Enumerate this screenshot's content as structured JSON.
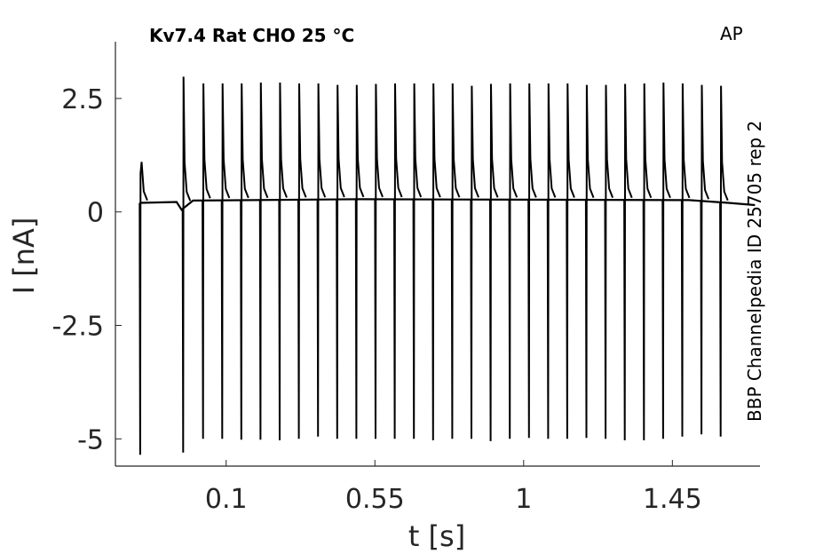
{
  "chart_data": {
    "type": "line",
    "title": "Kv7.4  Rat  CHO  25 °C",
    "protocol": "AP",
    "side_label": "BBP Channelpedia ID 25705 rep 2",
    "xlabel": "t [s]",
    "ylabel": "I [nA]",
    "xlim": [
      -0.235,
      1.715
    ],
    "ylim": [
      -5.6,
      3.75
    ],
    "x_ticks": [
      0.1,
      0.55,
      1,
      1.45
    ],
    "x_tick_labels": [
      "0.1",
      "0.55",
      "1",
      "1.45"
    ],
    "y_ticks": [
      2.5,
      0,
      -2.5,
      -5
    ],
    "y_tick_labels": [
      "2.5",
      "0",
      "-2.5",
      "-5"
    ],
    "grid": false,
    "series": [
      {
        "baseline": [
          [
            -0.16,
            0.2
          ],
          [
            -0.05,
            0.22
          ],
          [
            -0.035,
            0.05
          ],
          [
            0.0,
            0.25
          ],
          [
            0.5,
            0.28
          ],
          [
            1.0,
            0.27
          ],
          [
            1.5,
            0.26
          ],
          [
            1.62,
            0.2
          ],
          [
            1.7,
            0.15
          ]
        ],
        "spikes": [
          {
            "t": -0.16,
            "peak": 0.85,
            "trough": -5.35
          },
          {
            "t": -0.03,
            "peak": 2.98,
            "trough": -5.3
          },
          {
            "t": 0.03,
            "peak": 2.83,
            "trough": -5.0
          },
          {
            "t": 0.088,
            "peak": 2.83,
            "trough": -5.0
          },
          {
            "t": 0.146,
            "peak": 2.83,
            "trough": -5.02
          },
          {
            "t": 0.204,
            "peak": 2.85,
            "trough": -5.02
          },
          {
            "t": 0.262,
            "peak": 2.85,
            "trough": -5.03
          },
          {
            "t": 0.32,
            "peak": 2.83,
            "trough": -5.0
          },
          {
            "t": 0.378,
            "peak": 2.83,
            "trough": -4.95
          },
          {
            "t": 0.436,
            "peak": 2.8,
            "trough": -5.0
          },
          {
            "t": 0.494,
            "peak": 2.8,
            "trough": -5.0
          },
          {
            "t": 0.552,
            "peak": 2.82,
            "trough": -5.0
          },
          {
            "t": 0.61,
            "peak": 2.83,
            "trough": -5.0
          },
          {
            "t": 0.668,
            "peak": 2.83,
            "trough": -5.0
          },
          {
            "t": 0.726,
            "peak": 2.83,
            "trough": -5.03
          },
          {
            "t": 0.784,
            "peak": 2.83,
            "trough": -5.0
          },
          {
            "t": 0.842,
            "peak": 2.78,
            "trough": -5.0
          },
          {
            "t": 0.9,
            "peak": 2.82,
            "trough": -5.05
          },
          {
            "t": 0.958,
            "peak": 2.83,
            "trough": -5.0
          },
          {
            "t": 1.016,
            "peak": 2.83,
            "trough": -4.98
          },
          {
            "t": 1.074,
            "peak": 2.83,
            "trough": -5.0
          },
          {
            "t": 1.132,
            "peak": 2.83,
            "trough": -5.0
          },
          {
            "t": 1.19,
            "peak": 2.8,
            "trough": -4.98
          },
          {
            "t": 1.248,
            "peak": 2.8,
            "trough": -5.0
          },
          {
            "t": 1.306,
            "peak": 2.82,
            "trough": -5.03
          },
          {
            "t": 1.364,
            "peak": 2.83,
            "trough": -5.03
          },
          {
            "t": 1.422,
            "peak": 2.85,
            "trough": -5.0
          },
          {
            "t": 1.48,
            "peak": 2.83,
            "trough": -4.95
          },
          {
            "t": 1.538,
            "peak": 2.8,
            "trough": -4.9
          },
          {
            "t": 1.596,
            "peak": 2.78,
            "trough": -4.95
          }
        ]
      }
    ]
  }
}
